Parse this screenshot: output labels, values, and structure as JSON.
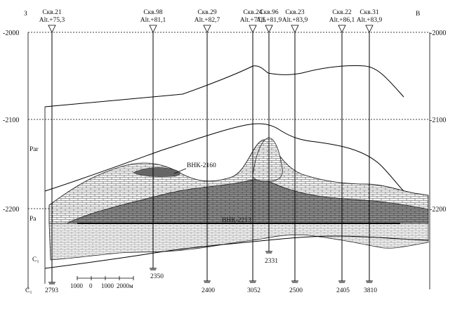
{
  "section": {
    "west_label": "З",
    "east_label": "В",
    "depth_labels": [
      "-2000",
      "-2100",
      "-2200"
    ],
    "wells": [
      {
        "name": "Скв.21",
        "alt": "Alt.+75,3",
        "td": "2793"
      },
      {
        "name": "Скв.98",
        "alt": "Alt.+81,1",
        "td": "2350"
      },
      {
        "name": "Скв.29",
        "alt": "Alt.+82,7",
        "td": "2400"
      },
      {
        "name": "Скв.24",
        "alt": "Alt.+77,5",
        "td": "3052"
      },
      {
        "name": "Скв.96",
        "alt": "Alt.+81,9",
        "td": "2331"
      },
      {
        "name": "Скв.23",
        "alt": "Alt.+83,9",
        "td": "2500"
      },
      {
        "name": "Скв.22",
        "alt": "Alt.+86,1",
        "td": "2405"
      },
      {
        "name": "Скв.31",
        "alt": "Alt.+83,9",
        "td": "3810"
      }
    ],
    "horizon_labels": {
      "p_ar": "Par",
      "p_a": "Pa",
      "c1_mid": "C₁",
      "c1_bottom": "C₁"
    },
    "owc_labels": {
      "upper": "ВНК-2160",
      "lower": "ВНК-2213"
    },
    "scale_bar": {
      "labels": [
        "1000",
        "0",
        "1000",
        "2000м"
      ]
    }
  }
}
